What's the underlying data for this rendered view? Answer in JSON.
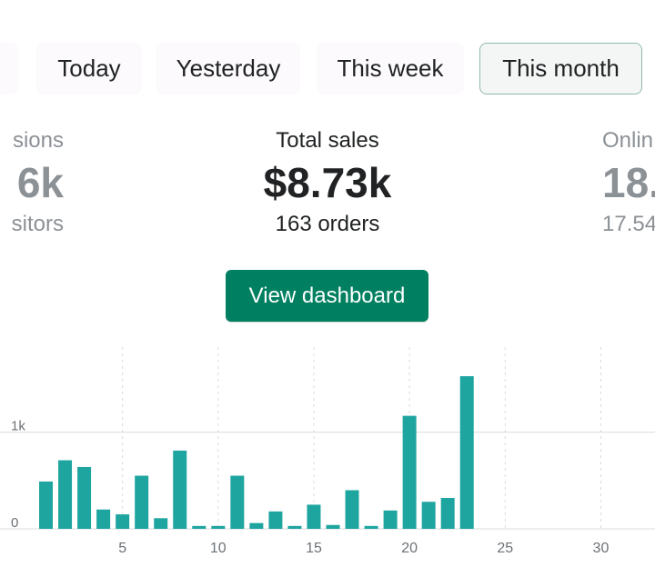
{
  "tabs": {
    "today": "Today",
    "yesterday": "Yesterday",
    "this_week": "This week",
    "this_month": "This month"
  },
  "metrics": {
    "left_partial": {
      "label": "sions",
      "value": "6k",
      "sub": "sitors"
    },
    "center": {
      "label": "Total sales",
      "value": "$8.73k",
      "sub": "163 orders"
    },
    "right_partial": {
      "label": "Onlin",
      "value": "18.",
      "sub": "17.54"
    }
  },
  "actions": {
    "view_dashboard": "View dashboard"
  },
  "colors": {
    "accent": "#008060",
    "bar": "#1fa5a0",
    "muted_text": "#8c9196",
    "grid": "#d9dcdc"
  },
  "chart_data": {
    "type": "bar",
    "x": [
      1,
      2,
      3,
      4,
      5,
      6,
      7,
      8,
      9,
      10,
      11,
      12,
      13,
      14,
      15,
      16,
      17,
      18,
      19,
      20,
      21,
      22,
      23,
      24,
      25,
      26,
      27,
      28,
      29,
      30,
      31
    ],
    "values": [
      490,
      710,
      640,
      200,
      150,
      550,
      110,
      810,
      30,
      30,
      550,
      60,
      180,
      30,
      250,
      40,
      400,
      30,
      190,
      1170,
      280,
      320,
      1580,
      0,
      0,
      0,
      0,
      0,
      0,
      0,
      0
    ],
    "xticks": [
      "5",
      "10",
      "15",
      "20",
      "25",
      "30"
    ],
    "xtick_values": [
      5,
      10,
      15,
      20,
      25,
      30
    ],
    "yticks": [
      "0",
      "1k"
    ],
    "ytick_values": [
      0,
      1000
    ],
    "ylim": [
      0,
      1900
    ],
    "grid": true
  }
}
